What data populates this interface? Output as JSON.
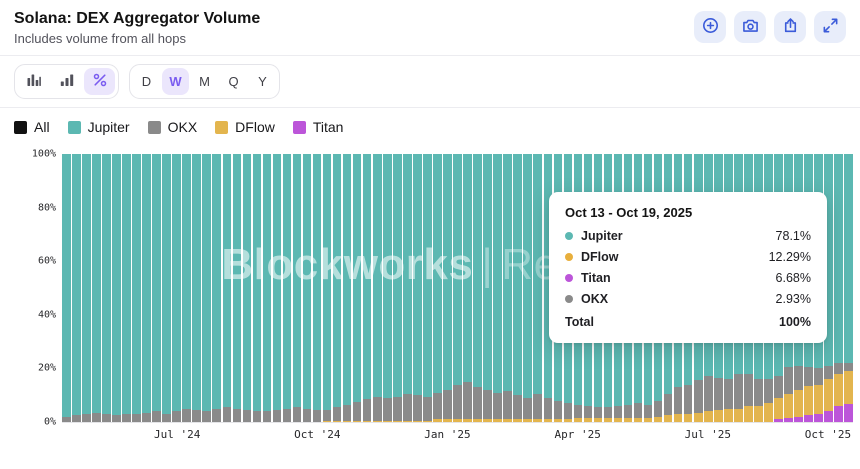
{
  "header": {
    "title": "Solana: DEX Aggregator Volume",
    "subtitle": "Includes volume from all hops"
  },
  "header_actions": [
    {
      "name": "zoom-in"
    },
    {
      "name": "camera"
    },
    {
      "name": "share"
    },
    {
      "name": "expand"
    }
  ],
  "toolbar": {
    "chart_types": [
      {
        "name": "bar-chart",
        "selected": false
      },
      {
        "name": "column-chart",
        "selected": false
      },
      {
        "name": "percent-view",
        "selected": true
      }
    ],
    "periods": [
      {
        "label": "D",
        "selected": false
      },
      {
        "label": "W",
        "selected": true
      },
      {
        "label": "M",
        "selected": false
      },
      {
        "label": "Q",
        "selected": false
      },
      {
        "label": "Y",
        "selected": false
      }
    ]
  },
  "legend": [
    {
      "label": "All",
      "color": "#111111"
    },
    {
      "label": "Jupiter",
      "color": "#5CB8B2"
    },
    {
      "label": "OKX",
      "color": "#8A8A8A"
    },
    {
      "label": "DFlow",
      "color": "#E3B54E"
    },
    {
      "label": "Titan",
      "color": "#BC55D9"
    }
  ],
  "watermark": {
    "brand": "Blockworks",
    "sep": "|",
    "suffix": "Research"
  },
  "tooltip": {
    "title": "Oct 13 - Oct 19, 2025",
    "rows": [
      {
        "label": "Jupiter",
        "value": "78.1%",
        "color": "#5CB8B2"
      },
      {
        "label": "DFlow",
        "value": "12.29%",
        "color": "#E8AF3C"
      },
      {
        "label": "Titan",
        "value": "6.68%",
        "color": "#BC55D9"
      },
      {
        "label": "OKX",
        "value": "2.93%",
        "color": "#8A8A8A"
      }
    ],
    "total_label": "Total",
    "total_value": "100%"
  },
  "chart_data": {
    "type": "bar",
    "stacked": true,
    "percent": true,
    "title": "Solana: DEX Aggregator Volume",
    "ylim": [
      0,
      100
    ],
    "y_ticks": [
      "100%",
      "80%",
      "60%",
      "40%",
      "20%",
      "0%"
    ],
    "x_ticks": [
      {
        "label": "Jul '24",
        "week": 11
      },
      {
        "label": "Oct '24",
        "week": 25
      },
      {
        "label": "Jan '25",
        "week": 38
      },
      {
        "label": "Apr '25",
        "week": 51
      },
      {
        "label": "Jul '25",
        "week": 64
      },
      {
        "label": "Oct '25",
        "week": 76
      }
    ],
    "stack_order": "bottom-to-top",
    "series": [
      {
        "name": "Titan",
        "color": "#BC55D9",
        "values": [
          0,
          0,
          0,
          0,
          0,
          0,
          0,
          0,
          0,
          0,
          0,
          0,
          0,
          0,
          0,
          0,
          0,
          0,
          0,
          0,
          0,
          0,
          0,
          0,
          0,
          0,
          0,
          0,
          0,
          0,
          0,
          0,
          0,
          0,
          0,
          0,
          0,
          0,
          0,
          0,
          0,
          0,
          0,
          0,
          0,
          0,
          0,
          0,
          0,
          0,
          0,
          0,
          0,
          0,
          0,
          0,
          0,
          0,
          0,
          0,
          0,
          0,
          0,
          0,
          0,
          0,
          0,
          0,
          0,
          0,
          0,
          1,
          1.5,
          2,
          2.5,
          3,
          4,
          6,
          6.68
        ]
      },
      {
        "name": "DFlow",
        "color": "#E3B54E",
        "values": [
          0,
          0,
          0,
          0,
          0,
          0,
          0,
          0,
          0,
          0,
          0,
          0,
          0,
          0,
          0,
          0,
          0,
          0,
          0,
          0,
          0,
          0,
          0,
          0,
          0,
          0,
          0.5,
          0.5,
          0.5,
          0.5,
          0.5,
          0.5,
          0.5,
          0.5,
          0.5,
          0.5,
          0.5,
          1,
          1,
          1,
          1,
          1,
          1,
          1,
          1,
          1,
          1,
          1,
          1,
          1,
          1,
          1.5,
          1.5,
          1.5,
          1.5,
          1.5,
          1.5,
          1.5,
          1.5,
          2,
          2.5,
          3,
          3,
          3.5,
          4,
          4.5,
          5,
          5,
          6,
          6,
          7,
          8,
          9,
          10,
          11,
          11,
          12,
          12,
          12.29
        ]
      },
      {
        "name": "OKX",
        "color": "#8A8A8A",
        "values": [
          2,
          2.5,
          3,
          3.5,
          3,
          2.5,
          3,
          3,
          3.5,
          4,
          3,
          4,
          5,
          4.5,
          4,
          5,
          5.5,
          5,
          4.5,
          4,
          4,
          4.5,
          5,
          5.5,
          5,
          4.5,
          4,
          5,
          6,
          7,
          8,
          9,
          8.5,
          9,
          10,
          9.5,
          9,
          10,
          11,
          13,
          14,
          12,
          11,
          10,
          10.5,
          9,
          8,
          9.5,
          8,
          7,
          6,
          5,
          4.5,
          4,
          4,
          4.5,
          5,
          5.5,
          5,
          6,
          8,
          10,
          11,
          12,
          13,
          12,
          11,
          13,
          12,
          10,
          9,
          8,
          10,
          9,
          7,
          6,
          5,
          4,
          2.93
        ]
      },
      {
        "name": "Jupiter",
        "color": "#5CB8B2",
        "values": [
          98,
          97.5,
          97,
          96.5,
          97,
          97.5,
          97,
          97,
          96.5,
          96,
          97,
          96,
          95,
          95.5,
          96,
          95,
          94.5,
          95,
          95.5,
          96,
          96,
          95.5,
          95,
          94.5,
          95,
          95.5,
          95.5,
          94.5,
          93.5,
          92.5,
          91.5,
          90.5,
          91,
          90.5,
          89.5,
          90,
          90.5,
          89,
          88,
          86,
          85,
          87,
          88,
          89,
          88.5,
          90,
          91,
          89.5,
          91,
          92,
          93,
          93.5,
          94,
          94.5,
          94.5,
          94,
          93.5,
          93,
          93.5,
          92,
          89.5,
          87,
          86,
          84.5,
          83,
          83.5,
          84,
          82,
          82,
          84,
          84,
          83,
          79.5,
          79,
          79.5,
          80,
          79,
          78,
          78.1
        ]
      }
    ]
  }
}
